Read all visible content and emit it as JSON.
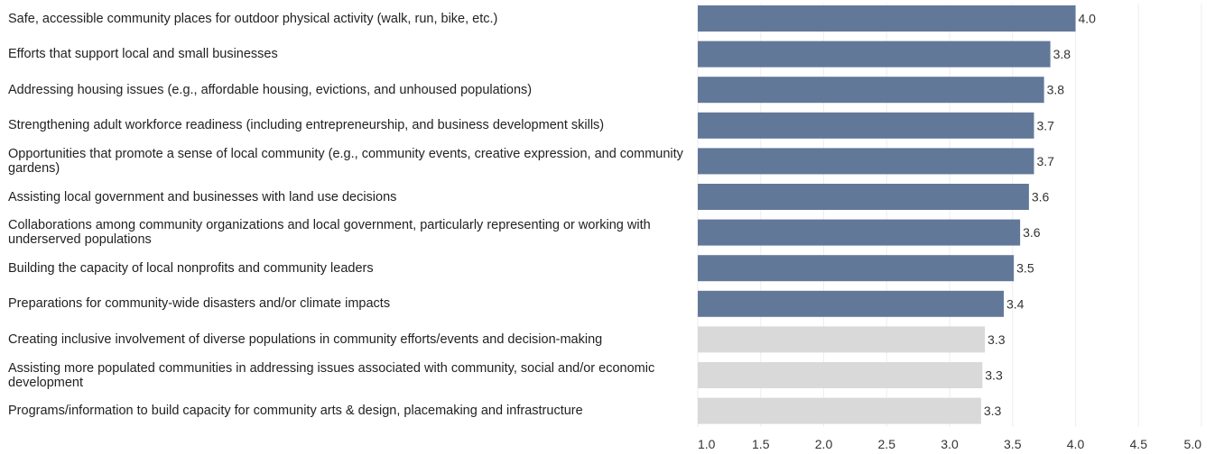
{
  "chart_data": {
    "type": "bar",
    "orientation": "horizontal",
    "categories": [
      "Safe, accessible community places for outdoor physical activity (walk, run, bike, etc.)",
      "Efforts that support local and small businesses",
      "Addressing housing issues (e.g., affordable housing, evictions, and unhoused populations)",
      "Strengthening adult workforce readiness (including entrepreneurship, and business development skills)",
      "Opportunities that promote a sense of local community (e.g., community events, creative expression, and community gardens)",
      "Assisting local government and businesses with land use decisions",
      "Collaborations among community organizations and local government, particularly representing or working with underserved populations",
      "Building the capacity of local nonprofits and community leaders",
      "Preparations for community-wide disasters and/or climate impacts",
      "Creating inclusive involvement of diverse populations in community efforts/events and decision-making",
      "Assisting more populated communities in addressing issues associated with community, social and/or economic development",
      "Programs/information to build capacity for community arts & design, placemaking and infrastructure"
    ],
    "values": [
      4.0,
      3.8,
      3.75,
      3.67,
      3.67,
      3.63,
      3.56,
      3.51,
      3.43,
      3.28,
      3.26,
      3.25
    ],
    "value_labels": [
      "4.0",
      "3.8",
      "3.8",
      "3.7",
      "3.7",
      "3.6",
      "3.6",
      "3.5",
      "3.4",
      "3.3",
      "3.3",
      "3.3"
    ],
    "highlighted": [
      true,
      true,
      true,
      true,
      true,
      true,
      true,
      true,
      true,
      false,
      false,
      false
    ],
    "colors": {
      "highlight": "#627899",
      "muted": "#d9d9d9",
      "grid": "#eeeeee"
    },
    "xlim": [
      1.0,
      5.0
    ],
    "xticks": [
      "1.0",
      "1.5",
      "2.0",
      "2.5",
      "3.0",
      "3.5",
      "4.0",
      "4.5",
      "5.0"
    ],
    "grid": true,
    "title": "",
    "xlabel": "",
    "ylabel": ""
  }
}
